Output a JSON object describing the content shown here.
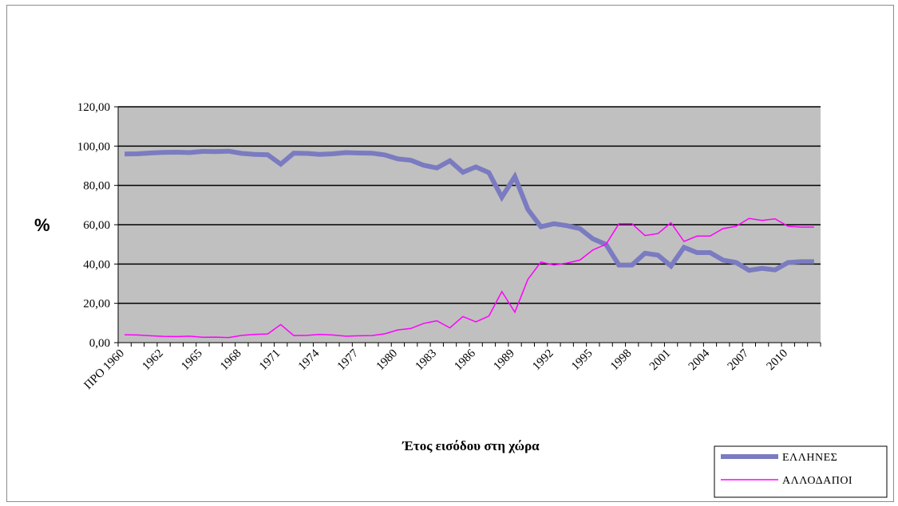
{
  "chart_data": {
    "type": "line",
    "title": "",
    "xlabel": "Έτος εισόδου στη χώρα",
    "ylabel": "%",
    "ylim": [
      0,
      120
    ],
    "yticks": [
      "0,00",
      "20,00",
      "40,00",
      "60,00",
      "80,00",
      "100,00",
      "120,00"
    ],
    "ytick_values": [
      0,
      20,
      40,
      60,
      80,
      100,
      120
    ],
    "grid": true,
    "legend_position": "bottom-right",
    "x": [
      "ΠΡΟ 1960",
      "1960",
      "1961",
      "1962",
      "1963",
      "1964",
      "1965",
      "1966",
      "1967",
      "1968",
      "1969",
      "1970",
      "1971",
      "1972",
      "1973",
      "1974",
      "1975",
      "1976",
      "1977",
      "1978",
      "1979",
      "1980",
      "1981",
      "1982",
      "1983",
      "1984",
      "1985",
      "1986",
      "1987",
      "1988",
      "1989",
      "1990",
      "1991",
      "1992",
      "1993",
      "1994",
      "1995",
      "1996",
      "1997",
      "1998",
      "1999",
      "2000",
      "2001",
      "2002",
      "2003",
      "2004",
      "2005",
      "2006",
      "2007",
      "2008",
      "2009",
      "2010",
      "2011",
      "2012"
    ],
    "xtick_labels": [
      "ΠΡΟ 1960",
      "1962",
      "1965",
      "1968",
      "1971",
      "1974",
      "1977",
      "1980",
      "1983",
      "1986",
      "1989",
      "1992",
      "1995",
      "1998",
      "2001",
      "2004",
      "2007",
      "2010"
    ],
    "series": [
      {
        "name": "ΕΛΛΗΝΕΣ",
        "color": "#7b7bc1",
        "values": [
          96.0,
          96.1,
          96.5,
          96.8,
          96.9,
          96.7,
          97.3,
          97.2,
          97.4,
          96.3,
          95.8,
          95.6,
          90.8,
          96.4,
          96.3,
          95.8,
          96.1,
          96.7,
          96.5,
          96.4,
          95.5,
          93.5,
          92.8,
          90.2,
          88.9,
          92.5,
          86.7,
          89.4,
          86.5,
          74.0,
          84.5,
          67.8,
          59.0,
          60.5,
          59.5,
          58.0,
          52.8,
          50.0,
          39.5,
          39.5,
          45.5,
          44.5,
          39.0,
          48.5,
          45.8,
          45.8,
          42.0,
          40.8,
          36.8,
          37.8,
          37.0,
          40.8,
          41.2,
          41.2
        ]
      },
      {
        "name": "ΑΛΛΟΔΑΠΟΙ",
        "color": "#ff00ff",
        "values": [
          4.0,
          3.9,
          3.5,
          3.2,
          3.1,
          3.3,
          2.7,
          2.8,
          2.6,
          3.7,
          4.2,
          4.4,
          9.2,
          3.6,
          3.7,
          4.2,
          3.9,
          3.3,
          3.5,
          3.6,
          4.5,
          6.5,
          7.2,
          9.8,
          11.1,
          7.5,
          13.3,
          10.6,
          13.5,
          26.0,
          15.5,
          32.2,
          41.0,
          39.5,
          40.5,
          42.0,
          47.2,
          50.0,
          60.5,
          60.5,
          54.5,
          55.5,
          61.0,
          51.5,
          54.2,
          54.2,
          58.0,
          59.2,
          63.2,
          62.2,
          63.0,
          59.2,
          58.8,
          58.8
        ]
      }
    ]
  }
}
